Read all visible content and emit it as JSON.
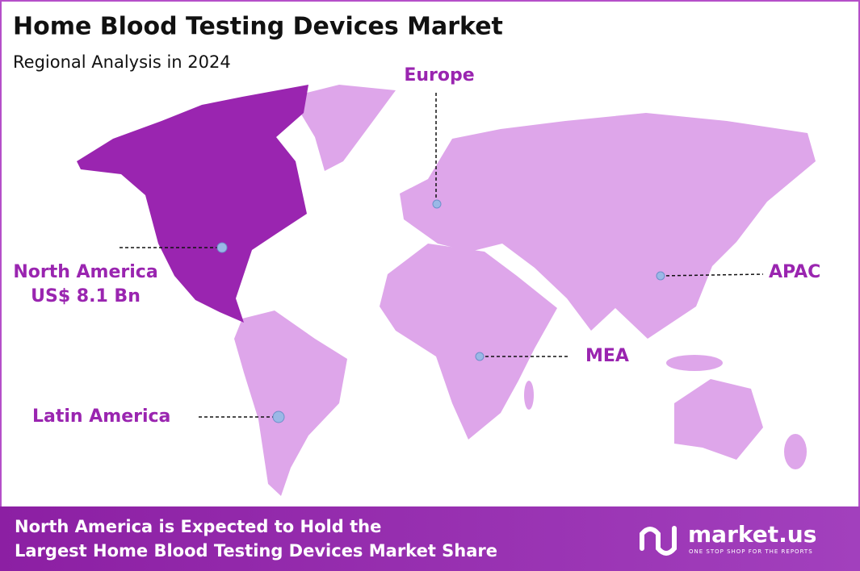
{
  "header": {
    "title": "Home Blood Testing Devices Market",
    "subtitle": "Regional Analysis in 2024"
  },
  "regions": [
    {
      "name": "North America",
      "value_label": "US$ 8.1 Bn"
    },
    {
      "name": "Europe"
    },
    {
      "name": "APAC"
    },
    {
      "name": "MEA"
    },
    {
      "name": "Latin America"
    }
  ],
  "footer": {
    "lines": [
      "North America is Expected to Hold the",
      "Largest Home Blood Testing Devices Market Share"
    ]
  },
  "logo": {
    "name": "market.us",
    "tagline": "ONE STOP SHOP FOR THE REPORTS"
  }
}
